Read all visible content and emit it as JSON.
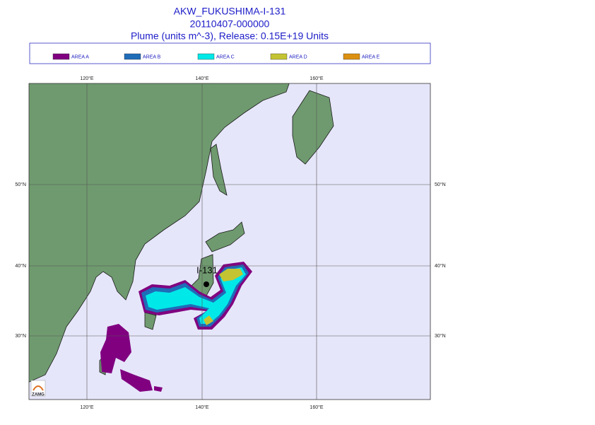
{
  "header": {
    "title": "AKW_FUKUSHIMA-I-131",
    "date": "20110407-000000",
    "subtitle": "Plume (units m^-3), Release:  0.15E+19 Units"
  },
  "legend": [
    {
      "label": "AREA A",
      "color": "#800080"
    },
    {
      "label": "AREA B",
      "color": "#1f6cb8"
    },
    {
      "label": "AREA C",
      "color": "#00e8e8"
    },
    {
      "label": "AREA D",
      "color": "#c4c432"
    },
    {
      "label": "AREA E",
      "color": "#dc9010"
    }
  ],
  "map": {
    "lon_labels": [
      "120°E",
      "140°E",
      "160°E"
    ],
    "lat_labels": [
      "50°N",
      "40°N",
      "30°N"
    ],
    "source_label": "I-131",
    "logo": "ZAMG"
  }
}
